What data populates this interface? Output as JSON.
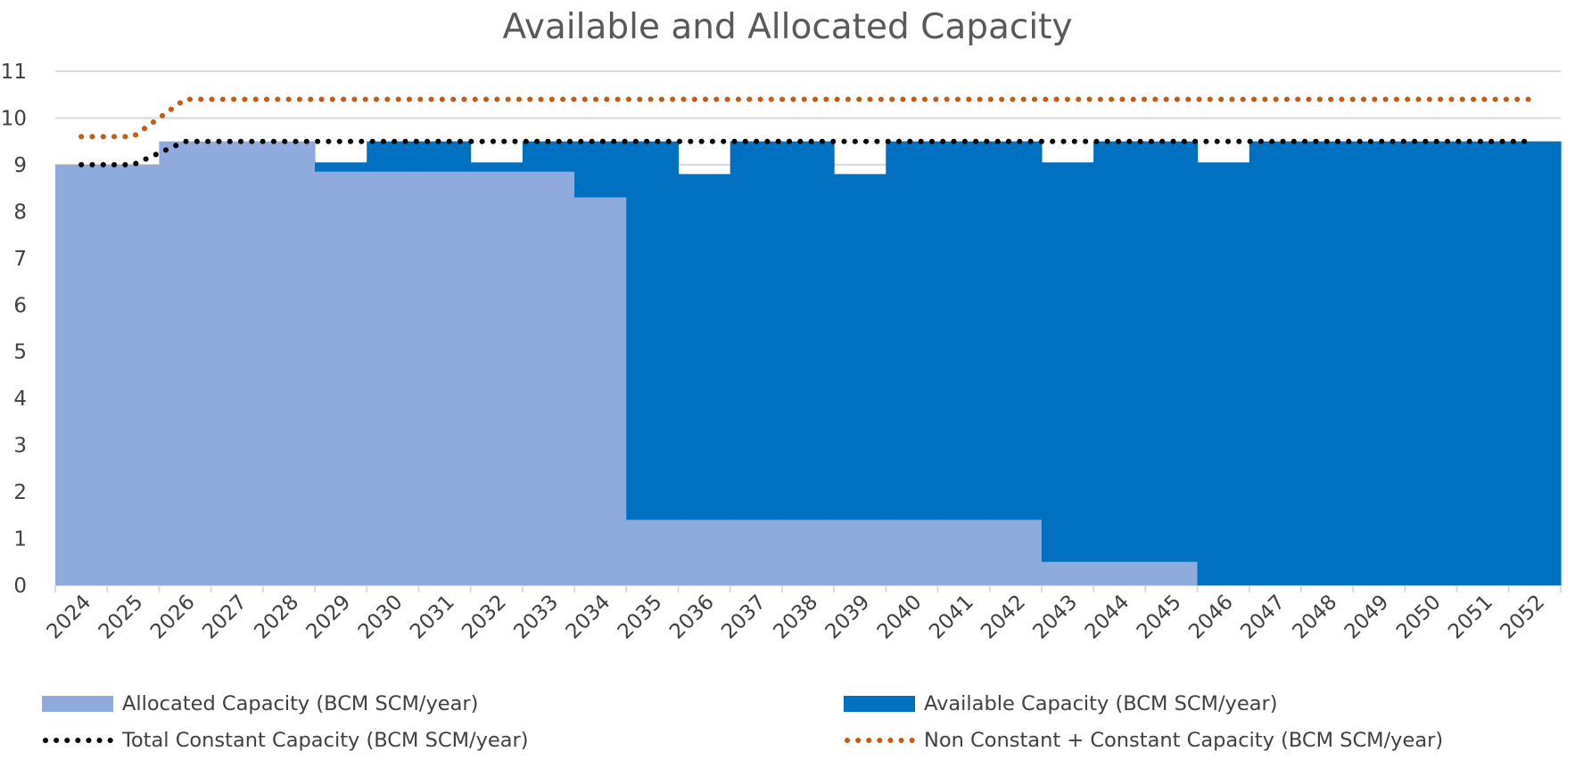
{
  "chart_data": {
    "type": "area",
    "title": "Available and Allocated Capacity",
    "xlabel": "",
    "ylabel": "",
    "ylim": [
      0,
      11
    ],
    "yticks": [
      0,
      1,
      2,
      3,
      4,
      5,
      6,
      7,
      8,
      9,
      10,
      11
    ],
    "grid": true,
    "legend_position": "bottom",
    "categories": [
      "2024",
      "2025",
      "2026",
      "2027",
      "2028",
      "2029",
      "2030",
      "2031",
      "2032",
      "2033",
      "2034",
      "2035",
      "2036",
      "2037",
      "2038",
      "2039",
      "2040",
      "2041",
      "2042",
      "2043",
      "2044",
      "2045",
      "2046",
      "2047",
      "2048",
      "2049",
      "2050",
      "2051",
      "2052"
    ],
    "series": [
      {
        "name": "Allocated Capacity (BCM SCM/year)",
        "kind": "stacked-area",
        "color": "#8faadc",
        "values": [
          9.0,
          9.0,
          9.5,
          9.5,
          9.5,
          8.85,
          8.85,
          8.85,
          8.85,
          8.85,
          8.3,
          1.4,
          1.4,
          1.4,
          1.4,
          1.4,
          1.4,
          1.4,
          1.4,
          0.5,
          0.5,
          0.5,
          0,
          0,
          0,
          0,
          0,
          0,
          0
        ]
      },
      {
        "name": "Available Capacity (BCM SCM/year)",
        "kind": "stacked-area",
        "color": "#0070c0",
        "values": [
          0,
          0,
          0,
          0,
          0,
          0.2,
          0.65,
          0.65,
          0.2,
          0.65,
          1.2,
          8.1,
          7.4,
          8.1,
          8.1,
          7.4,
          8.1,
          8.1,
          8.1,
          8.55,
          9.0,
          9.0,
          9.05,
          9.5,
          9.5,
          9.5,
          9.5,
          9.5,
          9.5
        ]
      },
      {
        "name": "Total Constant  Capacity (BCM SCM/year)",
        "kind": "dotted-line",
        "color": "#000000",
        "values": [
          9.0,
          9.0,
          9.5,
          9.5,
          9.5,
          9.5,
          9.5,
          9.5,
          9.5,
          9.5,
          9.5,
          9.5,
          9.5,
          9.5,
          9.5,
          9.5,
          9.5,
          9.5,
          9.5,
          9.5,
          9.5,
          9.5,
          9.5,
          9.5,
          9.5,
          9.5,
          9.5,
          9.5,
          9.5
        ]
      },
      {
        "name": "Non Constant + Constant Capacity (BCM SCM/year)",
        "kind": "dotted-line",
        "color": "#c55a11",
        "values": [
          9.6,
          9.6,
          10.4,
          10.4,
          10.4,
          10.4,
          10.4,
          10.4,
          10.4,
          10.4,
          10.4,
          10.4,
          10.4,
          10.4,
          10.4,
          10.4,
          10.4,
          10.4,
          10.4,
          10.4,
          10.4,
          10.4,
          10.4,
          10.4,
          10.4,
          10.4,
          10.4,
          10.4,
          10.4
        ]
      }
    ]
  }
}
